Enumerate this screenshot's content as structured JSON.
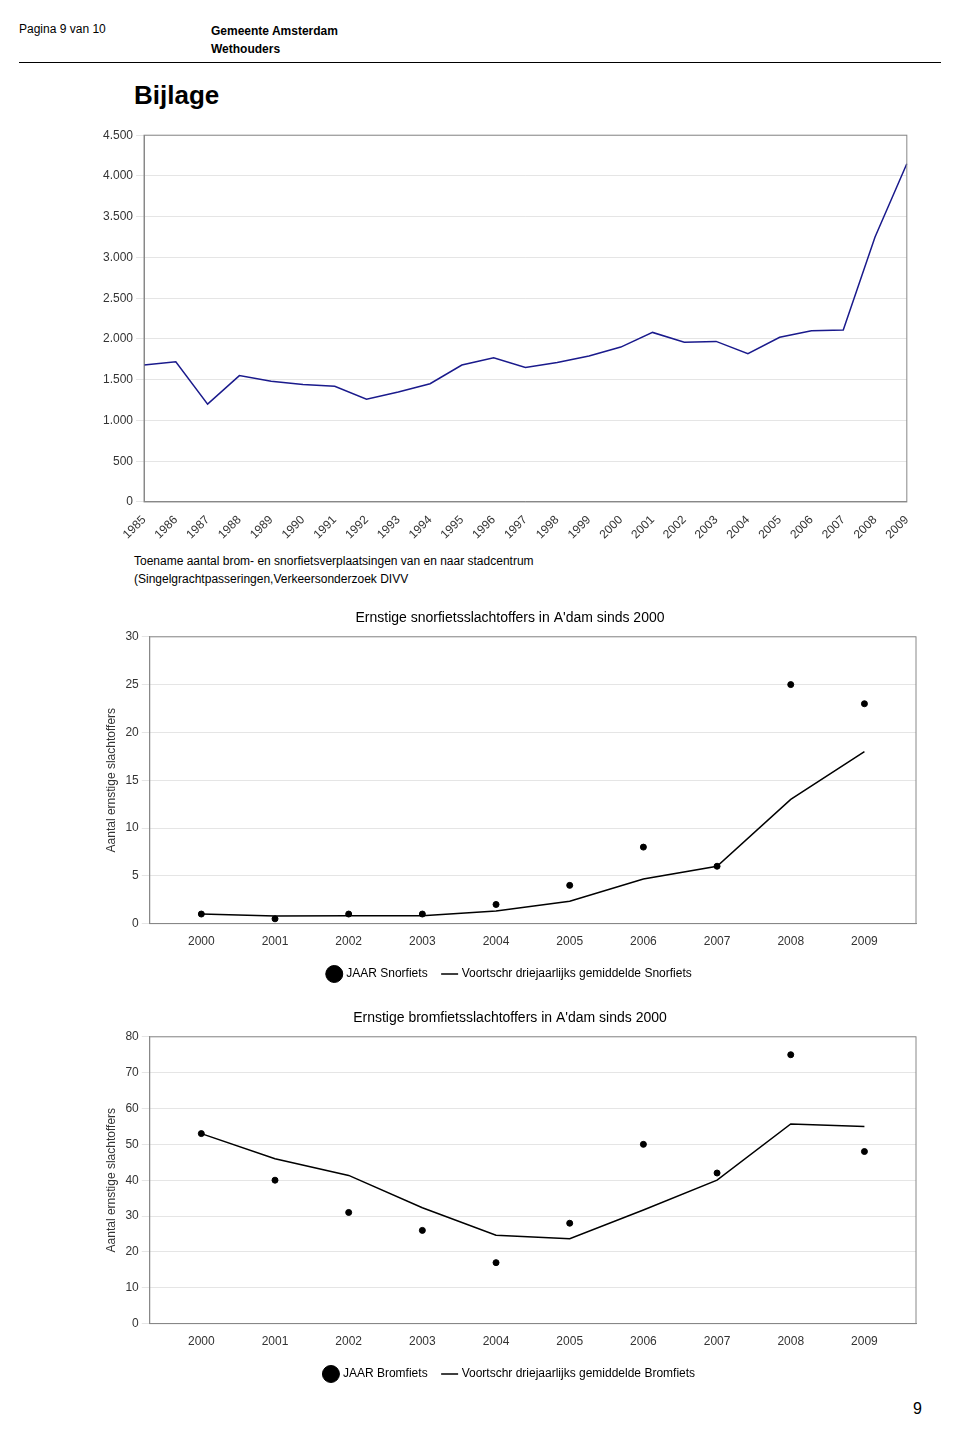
{
  "header": [
    "Pagina 9 van 10",
    "Gemeente Amsterdam",
    "Wethouders"
  ],
  "title": "Bijlage",
  "page_number": "9",
  "chart_data": [
    {
      "type": "line",
      "categories": [
        1985,
        1986,
        1987,
        1988,
        1989,
        1990,
        1991,
        1992,
        1993,
        1994,
        1995,
        1996,
        1997,
        1998,
        1999,
        2000,
        2001,
        2002,
        2003,
        2004,
        2005,
        2006,
        2007,
        2008,
        2009
      ],
      "values": [
        1680,
        1720,
        1200,
        1550,
        1480,
        1440,
        1420,
        1260,
        1350,
        1450,
        1680,
        1770,
        1650,
        1710,
        1790,
        1900,
        2080,
        1960,
        1970,
        1820,
        2020,
        2100,
        2110,
        3250,
        4150
      ],
      "color": "#1a1a8c",
      "ylim": [
        0,
        4500
      ],
      "yticks": [
        0,
        500,
        {
          "value": 1000,
          "label": "1.000"
        },
        {
          "value": 1500,
          "label": "1.500"
        },
        {
          "value": 2000,
          "label": "2.000"
        },
        {
          "value": 2500,
          "label": "2.500"
        },
        {
          "value": 3000,
          "label": "3.000"
        },
        {
          "value": 3500,
          "label": "3.500"
        },
        {
          "value": 4000,
          "label": "4.000"
        },
        {
          "value": 4500,
          "label": "4.500"
        }
      ],
      "grid": true,
      "annotations": [
        "Toename aantal brom- en snorfietsverplaatsingen van en naar stadcentrum",
        "(Singelgrachtpasseringen,Verkeersonderzoek DIVV"
      ]
    },
    {
      "type": "scatter",
      "title": "Ernstige snorfietsslachtoffers in A'dam sinds 2000",
      "y_label": "Aantal ernstige slachtoffers",
      "x": [
        2000,
        2001,
        2002,
        2003,
        2004,
        2005,
        2006,
        2007,
        2008,
        2009
      ],
      "series": [
        {
          "name": "JAAR Snorfiets",
          "type": "scatter",
          "color": "#000000",
          "marker": "circle",
          "values": [
            1,
            0.5,
            1,
            1,
            2,
            4,
            8,
            6,
            25,
            23
          ]
        },
        {
          "name": "Voortschr driejaarlijks gemiddelde Snorfiets",
          "type": "line",
          "color": "#000000",
          "line_style": "solid",
          "values": [
            1.0,
            0.8,
            0.83,
            0.83,
            1.33,
            2.33,
            4.67,
            6.0,
            13.0,
            18.0
          ]
        }
      ],
      "xlim": [
        1999.3,
        2009.7
      ],
      "xticks": [
        2000,
        2001,
        2002,
        2003,
        2004,
        2005,
        2006,
        2007,
        2008,
        2009
      ],
      "ylim": [
        0,
        30
      ],
      "yticks": [
        0,
        5,
        10,
        15,
        20,
        25,
        30
      ],
      "grid": true,
      "legend": "bottom"
    },
    {
      "type": "scatter",
      "title": "Ernstige bromfietsslachtoffers in A'dam sinds 2000",
      "y_label": "Aantal ernstige slachtoffers",
      "x": [
        2000,
        2001,
        2002,
        2003,
        2004,
        2005,
        2006,
        2007,
        2008,
        2009
      ],
      "series": [
        {
          "name": "JAAR Bromfiets",
          "type": "scatter",
          "color": "#000000",
          "marker": "circle",
          "values": [
            53,
            40,
            31,
            26,
            17,
            28,
            50,
            42,
            75,
            48
          ]
        },
        {
          "name": "Voortschr driejaarlijks gemiddelde Bromfiets",
          "type": "line",
          "color": "#000000",
          "line_style": "solid",
          "values": [
            53.0,
            46.0,
            41.33,
            32.33,
            24.67,
            23.67,
            31.67,
            40.0,
            55.67,
            55.0
          ]
        }
      ],
      "xlim": [
        1999.3,
        2009.7
      ],
      "xticks": [
        2000,
        2001,
        2002,
        2003,
        2004,
        2005,
        2006,
        2007,
        2008,
        2009
      ],
      "ylim": [
        0,
        80
      ],
      "yticks": [
        0,
        10,
        20,
        30,
        40,
        50,
        60,
        70,
        80
      ],
      "grid": true,
      "legend": "bottom"
    }
  ]
}
